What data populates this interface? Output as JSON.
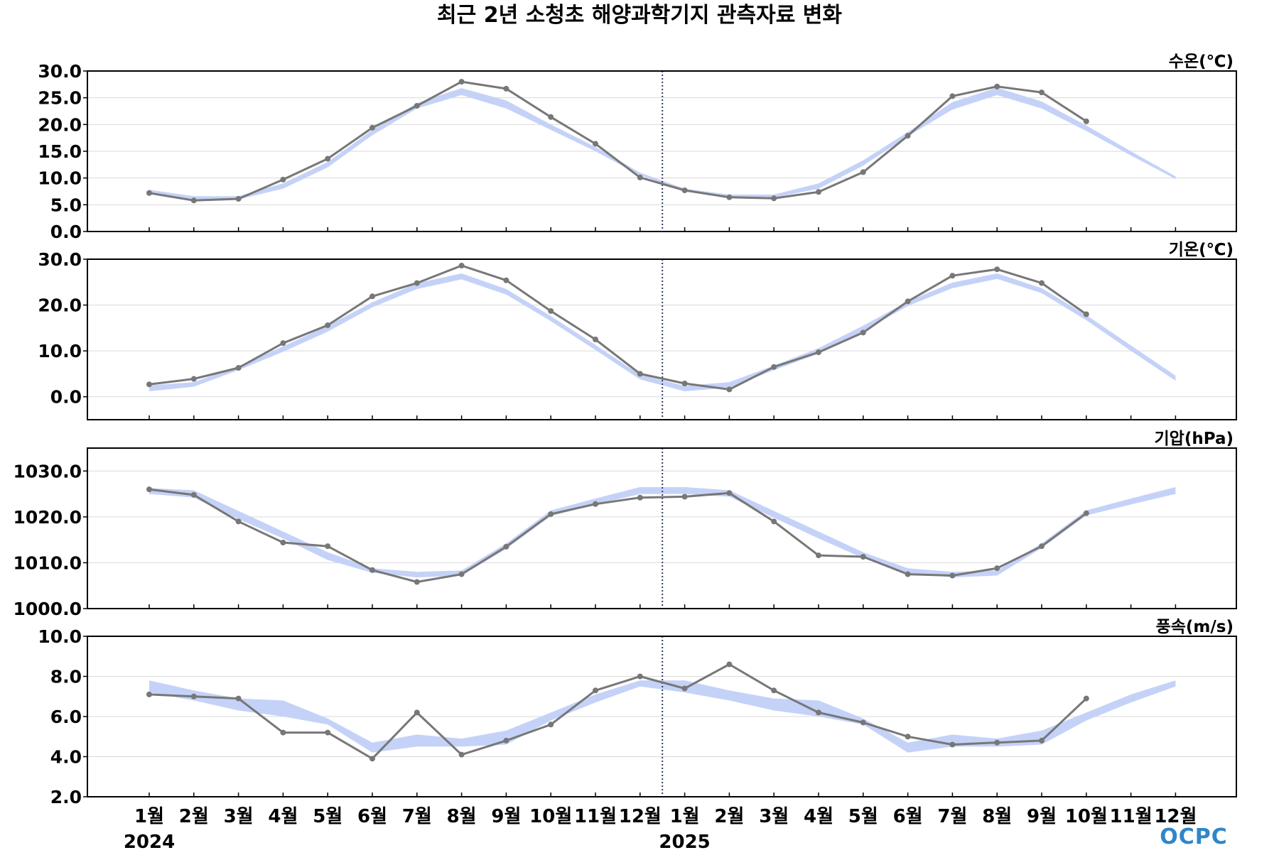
{
  "title": "최근 2년 소청초 해양과학기지 관측자료 변화",
  "logo": "OCPC",
  "colors": {
    "observed_line": "#777777",
    "climatology_band": "#c5d2f8",
    "divider": "#2b3a67",
    "grid": "#d9d9d9",
    "logo": "#2f86c8"
  },
  "x_axis": {
    "tick_labels": [
      "1월",
      "2월",
      "3월",
      "4월",
      "5월",
      "6월",
      "7월",
      "8월",
      "9월",
      "10월",
      "11월",
      "12월",
      "1월",
      "2월",
      "3월",
      "4월",
      "5월",
      "6월",
      "7월",
      "8월",
      "9월",
      "10월",
      "11월",
      "12월"
    ],
    "year_labels": [
      {
        "label": "2024",
        "index": 0
      },
      {
        "label": "2025",
        "index": 12
      }
    ]
  },
  "chart_data": [
    {
      "type": "line",
      "ylabel": "수온(℃)",
      "ylim": [
        0,
        30
      ],
      "yticks": [
        0,
        5,
        10,
        15,
        20,
        25,
        30
      ],
      "ytick_labels": [
        "0.0",
        "5.0",
        "10.0",
        "15.0",
        "20.0",
        "25.0",
        "30.0"
      ],
      "grid": true,
      "series": [
        {
          "values": [
            7.2,
            5.8,
            6.1,
            9.7,
            13.6,
            19.4,
            23.5,
            28.0,
            26.7,
            21.4,
            16.4,
            10.1,
            7.7,
            6.4,
            6.2,
            7.4,
            11.1,
            17.9,
            25.3,
            27.1,
            26.0,
            20.6,
            null,
            null
          ]
        }
      ],
      "band": {
        "lower": [
          7.0,
          6.0,
          6.0,
          8.0,
          12.0,
          18.0,
          23.0,
          25.5,
          23.0,
          19.0,
          15.0,
          10.5,
          7.5,
          6.3,
          6.3,
          8.0,
          12.3,
          17.8,
          22.8,
          25.5,
          23.0,
          18.8,
          14.2,
          9.8
        ],
        "upper": [
          7.8,
          6.6,
          6.6,
          9.0,
          13.0,
          19.0,
          24.0,
          26.8,
          24.5,
          20.0,
          15.8,
          11.0,
          8.0,
          6.9,
          6.9,
          9.0,
          13.3,
          18.6,
          24.2,
          26.9,
          24.3,
          19.8,
          15.0,
          10.3
        ]
      }
    },
    {
      "type": "line",
      "ylabel": "기온(℃)",
      "ylim": [
        -5,
        30
      ],
      "yticks": [
        0,
        10,
        20,
        30
      ],
      "ytick_labels": [
        "0.0",
        "10.0",
        "20.0",
        "30.0"
      ],
      "grid": true,
      "series": [
        {
          "values": [
            2.7,
            3.9,
            6.3,
            11.7,
            15.6,
            21.9,
            24.8,
            28.6,
            25.4,
            18.7,
            12.5,
            5.0,
            2.9,
            1.6,
            6.5,
            9.7,
            14.0,
            20.8,
            26.4,
            27.8,
            24.8,
            18.0,
            null,
            null
          ]
        }
      ],
      "band": {
        "lower": [
          1.2,
          2.2,
          5.8,
          9.8,
          14.2,
          19.5,
          23.5,
          25.6,
          22.3,
          16.5,
          10.2,
          3.8,
          1.2,
          2.0,
          5.8,
          9.4,
          14.3,
          19.8,
          23.7,
          25.7,
          22.6,
          16.7,
          10.0,
          3.5
        ],
        "upper": [
          2.5,
          3.2,
          6.7,
          11.0,
          15.5,
          20.6,
          24.8,
          26.9,
          23.5,
          17.6,
          11.3,
          4.8,
          2.4,
          3.2,
          6.8,
          10.6,
          15.5,
          20.8,
          24.9,
          26.9,
          23.7,
          17.8,
          11.2,
          4.6
        ]
      }
    },
    {
      "type": "line",
      "ylabel": "기압(hPa)",
      "ylim": [
        1000,
        1035
      ],
      "yticks": [
        1000,
        1010,
        1020,
        1030
      ],
      "ytick_labels": [
        "1000.0",
        "1010.0",
        "1020.0",
        "1030.0"
      ],
      "grid": true,
      "series": [
        {
          "values": [
            1026.0,
            1024.8,
            1019.0,
            1014.4,
            1013.6,
            1008.4,
            1005.8,
            1007.5,
            1013.5,
            1020.6,
            1022.8,
            1024.2,
            1024.4,
            1025.2,
            1019.0,
            1011.6,
            1011.3,
            1007.5,
            1007.2,
            1008.8,
            1013.6,
            1020.8,
            null,
            null
          ]
        }
      ],
      "band": {
        "lower": [
          1025.0,
          1024.2,
          1019.5,
          1015.3,
          1010.6,
          1007.8,
          1006.8,
          1007.2,
          1013.0,
          1020.2,
          1022.7,
          1025.0,
          1025.0,
          1024.4,
          1019.8,
          1015.3,
          1011.0,
          1007.8,
          1006.8,
          1007.2,
          1013.2,
          1020.3,
          1022.7,
          1025.0
        ],
        "upper": [
          1026.3,
          1025.8,
          1021.3,
          1016.8,
          1012.3,
          1008.8,
          1008.0,
          1008.3,
          1014.2,
          1021.4,
          1024.0,
          1026.5,
          1026.5,
          1025.8,
          1021.3,
          1016.8,
          1012.3,
          1008.8,
          1008.0,
          1008.3,
          1014.2,
          1021.4,
          1024.0,
          1026.5
        ]
      }
    },
    {
      "type": "line",
      "ylabel": "풍속(m/s)",
      "ylim": [
        2,
        10
      ],
      "yticks": [
        2,
        4,
        6,
        8,
        10
      ],
      "ytick_labels": [
        "2.0",
        "4.0",
        "6.0",
        "8.0",
        "10.0"
      ],
      "grid": true,
      "series": [
        {
          "values": [
            7.1,
            7.0,
            6.9,
            5.2,
            5.2,
            3.9,
            6.2,
            4.1,
            4.8,
            5.6,
            7.3,
            8.0,
            7.4,
            8.6,
            7.3,
            6.2,
            5.7,
            5.0,
            4.6,
            4.7,
            4.8,
            6.9,
            null,
            null
          ]
        }
      ],
      "band": {
        "lower": [
          7.2,
          6.8,
          6.3,
          6.0,
          5.6,
          4.2,
          4.5,
          4.5,
          4.6,
          5.8,
          6.7,
          7.5,
          7.2,
          6.8,
          6.3,
          6.0,
          5.6,
          4.2,
          4.5,
          4.5,
          4.6,
          5.8,
          6.7,
          7.5
        ],
        "upper": [
          7.8,
          7.3,
          6.9,
          6.8,
          5.9,
          4.7,
          5.1,
          4.9,
          5.3,
          6.2,
          7.1,
          7.8,
          7.8,
          7.3,
          6.9,
          6.8,
          5.9,
          4.7,
          5.1,
          4.9,
          5.3,
          6.2,
          7.1,
          7.8
        ]
      }
    }
  ]
}
